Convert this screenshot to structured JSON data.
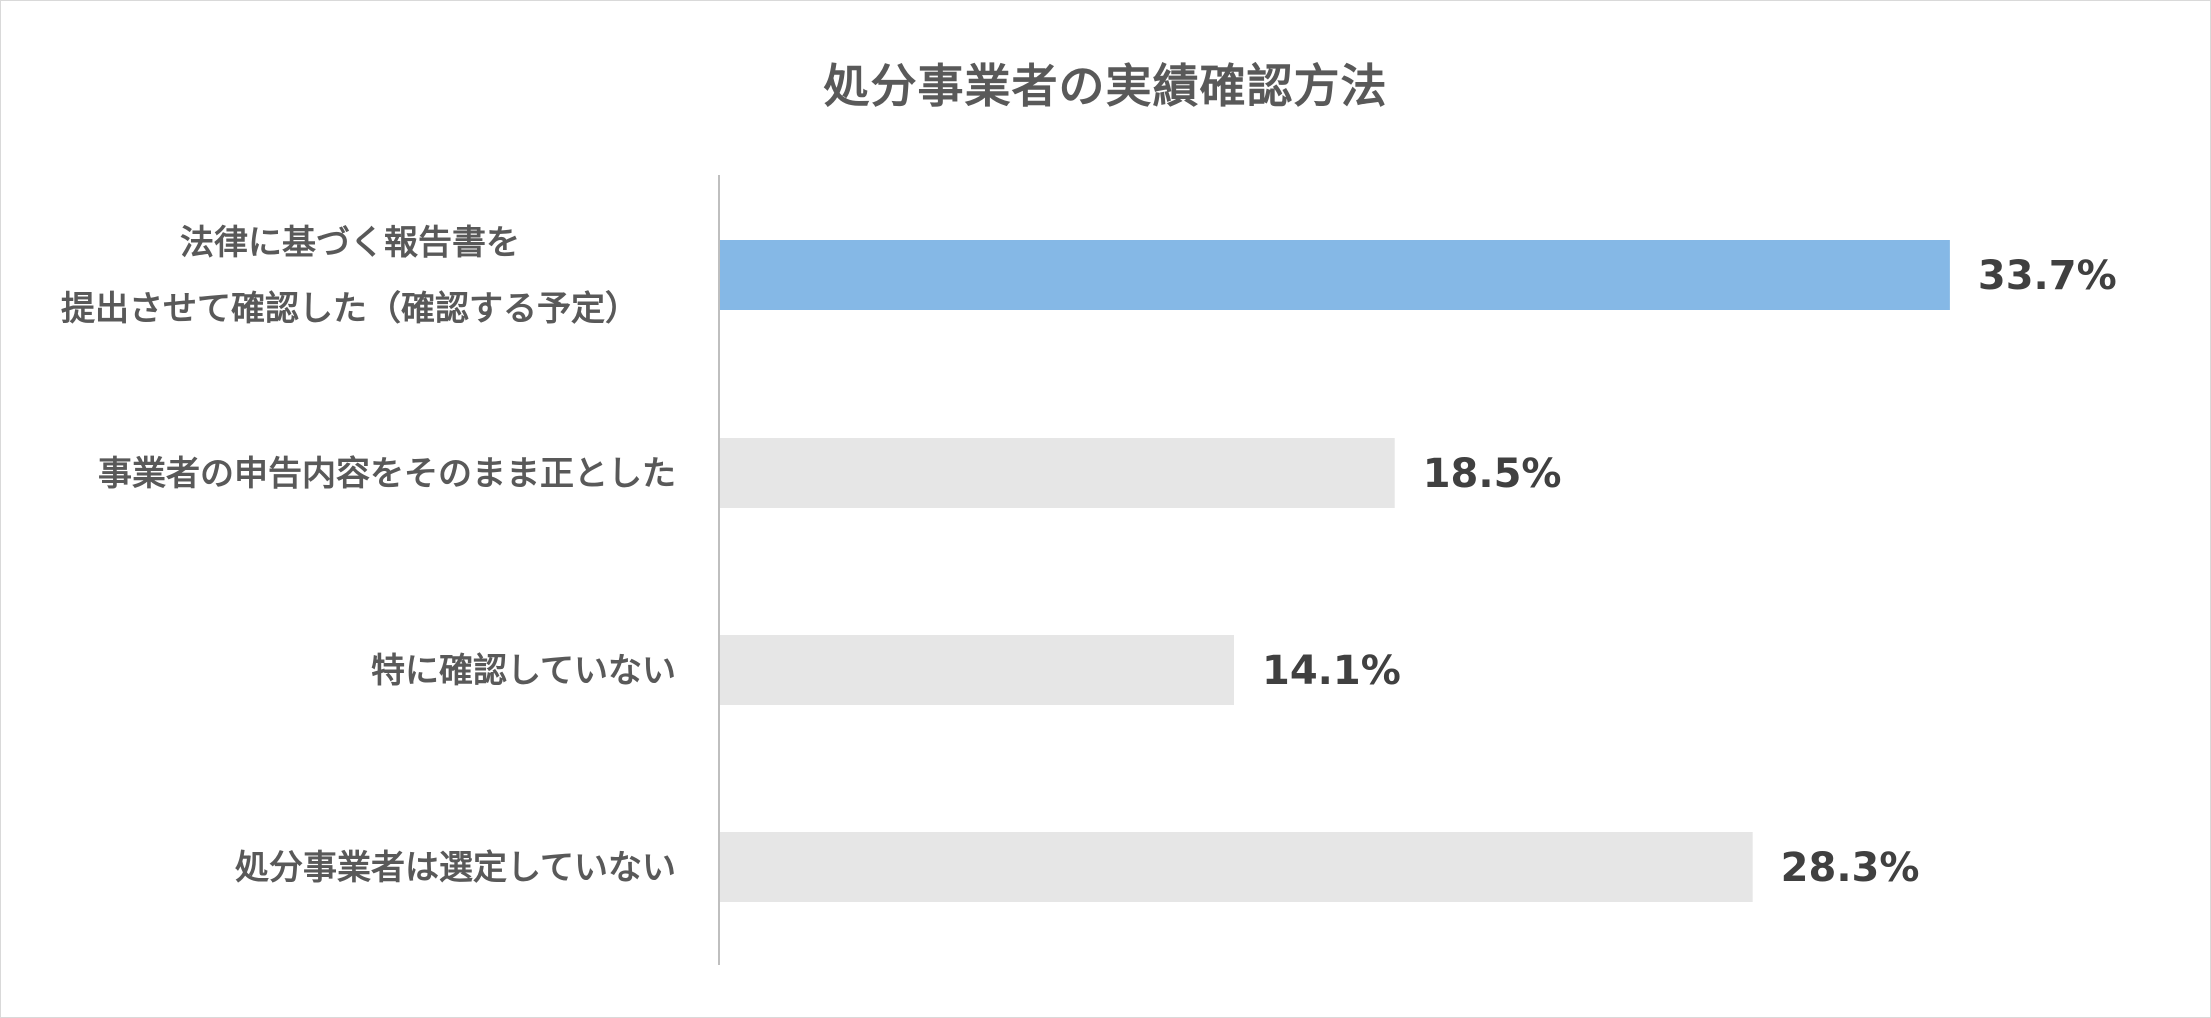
{
  "chart_data": {
    "type": "bar",
    "orientation": "horizontal",
    "title": "処分事業者の実績確認方法",
    "categories": [
      "法律に基づく報告書を\n提出させて確認した（確認する予定）",
      "事業者の申告内容をそのまま正とした",
      "特に確認していない",
      "処分事業者は選定していない"
    ],
    "values": [
      33.7,
      18.5,
      14.1,
      28.3
    ],
    "value_labels": [
      "33.7%",
      "18.5%",
      "14.1%",
      "28.3%"
    ],
    "unit": "%",
    "xlim": [
      0,
      40
    ],
    "highlight_index": 0,
    "colors": {
      "highlight": "#85b8e6",
      "default": "#e6e6e6",
      "axis": "#bfbfbf"
    },
    "grid": false,
    "legend": "none"
  }
}
